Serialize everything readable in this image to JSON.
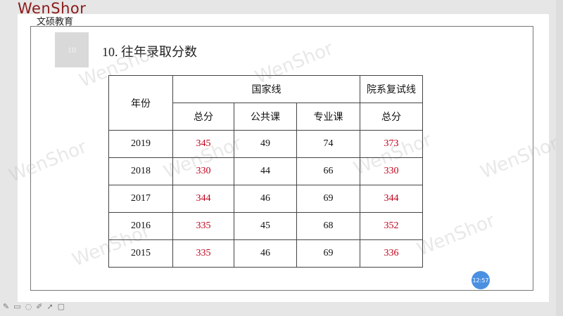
{
  "brand": {
    "logo": "WenShor",
    "sub": "文硕教育"
  },
  "slide": {
    "number": "10",
    "title": "10. 往年录取分数"
  },
  "table": {
    "header": {
      "year": "年份",
      "national": "国家线",
      "dept": "院系复试线",
      "total": "总分",
      "public": "公共课",
      "major": "专业课",
      "dept_total": "总分"
    },
    "rows": [
      {
        "year": "2019",
        "total": "345",
        "public": "49",
        "major": "74",
        "dept": "373"
      },
      {
        "year": "2018",
        "total": "330",
        "public": "44",
        "major": "66",
        "dept": "330"
      },
      {
        "year": "2017",
        "total": "344",
        "public": "46",
        "major": "69",
        "dept": "344"
      },
      {
        "year": "2016",
        "total": "335",
        "public": "45",
        "major": "68",
        "dept": "352"
      },
      {
        "year": "2015",
        "total": "335",
        "public": "46",
        "major": "69",
        "dept": "336"
      }
    ]
  },
  "clock": "12:57",
  "toolbar": {
    "icons": [
      "pen-icon",
      "eraser-icon",
      "comment-icon",
      "highlighter-icon",
      "pointer-icon",
      "screen-icon"
    ]
  },
  "colors": {
    "brand": "#8b1a1a",
    "highlight": "#c0001a",
    "clock": "#4a90e2"
  }
}
